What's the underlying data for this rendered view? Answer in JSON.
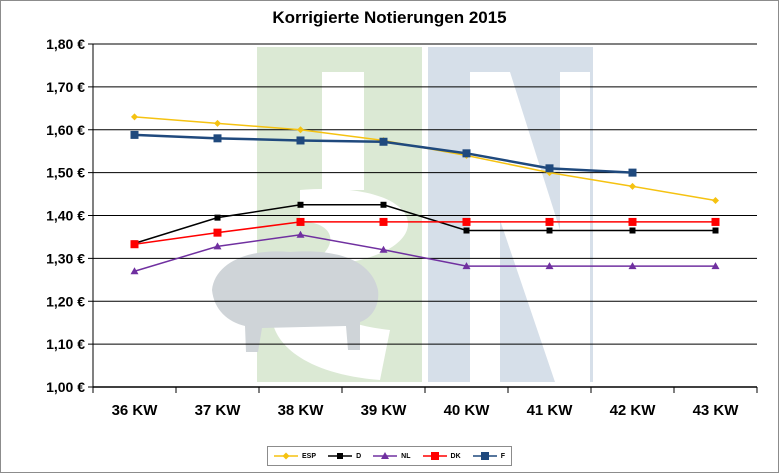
{
  "chart_data": {
    "type": "line",
    "title": "Korrigierte Notierungen 2015",
    "xlabel": "",
    "ylabel": "",
    "categories": [
      "36 KW",
      "37 KW",
      "38 KW",
      "39 KW",
      "40 KW",
      "41 KW",
      "42 KW",
      "43 KW"
    ],
    "ylim": [
      1.0,
      1.8
    ],
    "yticks": [
      1.0,
      1.1,
      1.2,
      1.3,
      1.4,
      1.5,
      1.6,
      1.7,
      1.8
    ],
    "ytick_labels": [
      "1,00 €",
      "1,10 €",
      "1,20 €",
      "1,30 €",
      "1,40 €",
      "1,50 €",
      "1,60 €",
      "1,70 €",
      "1,80 €"
    ],
    "grid": "horizontal",
    "legend_position": "bottom",
    "series": [
      {
        "name": "ESP",
        "color": "#f5c211",
        "marker": "diamond",
        "values": [
          1.63,
          1.615,
          1.6,
          1.575,
          1.54,
          1.5,
          1.468,
          1.435
        ]
      },
      {
        "name": "D",
        "color": "#000000",
        "marker": "square",
        "values": [
          1.335,
          1.395,
          1.425,
          1.425,
          1.365,
          1.365,
          1.365,
          1.365
        ]
      },
      {
        "name": "NL",
        "color": "#7030a0",
        "marker": "triangle",
        "values": [
          1.27,
          1.328,
          1.355,
          1.32,
          1.282,
          1.282,
          1.282,
          1.282
        ]
      },
      {
        "name": "DK",
        "color": "#ff0000",
        "marker": "square",
        "values": [
          1.333,
          1.36,
          1.385,
          1.385,
          1.385,
          1.385,
          1.385,
          1.385
        ]
      },
      {
        "name": "F",
        "color": "#1f497d",
        "marker": "square",
        "values": [
          1.588,
          1.58,
          1.575,
          1.572,
          1.545,
          1.51,
          1.5,
          null
        ]
      }
    ]
  },
  "watermark": {
    "text": "ISN",
    "colors": {
      "green": "#dbe9d4",
      "blue": "#d6dfe9"
    }
  }
}
